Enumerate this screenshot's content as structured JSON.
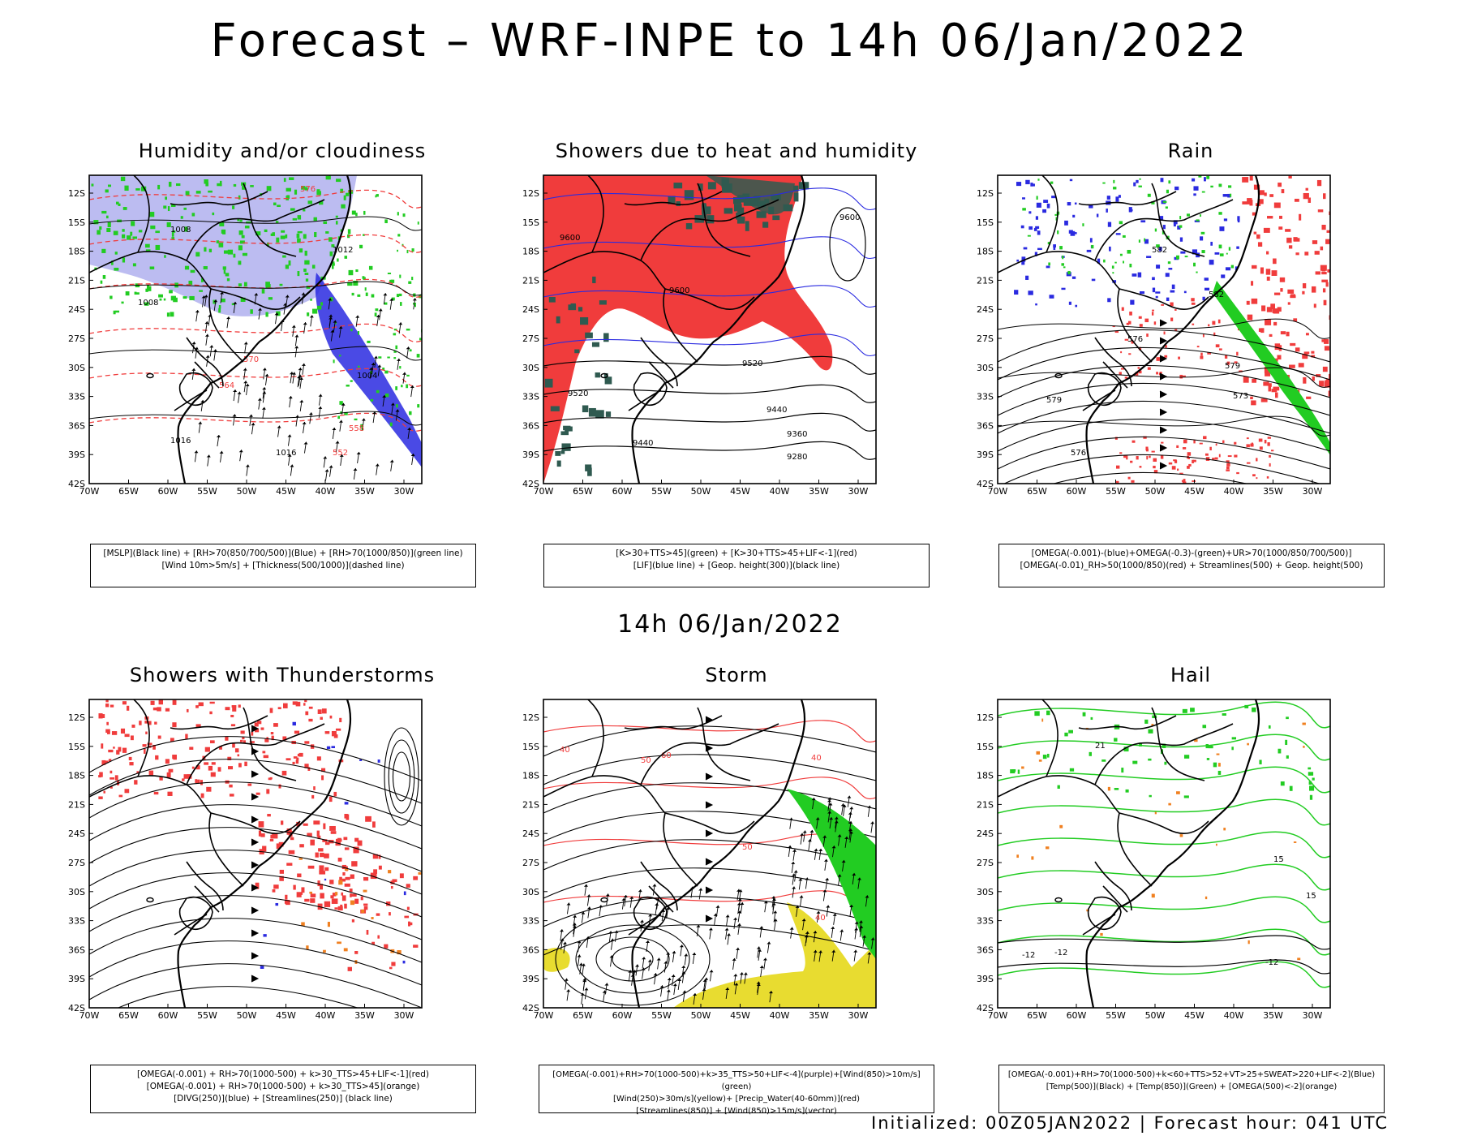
{
  "header": {
    "title": "Forecast – WRF-INPE to 14h 06/Jan/2022"
  },
  "subtitle": "14h 06/Jan/2022",
  "footer": "Initialized: 00Z05JAN2022 | Forecast hour: 041 UTC",
  "axes": {
    "lat_labels": [
      "12S",
      "15S",
      "18S",
      "21S",
      "24S",
      "27S",
      "30S",
      "33S",
      "36S",
      "39S",
      "42S"
    ],
    "lon_labels": [
      "70W",
      "65W",
      "60W",
      "55W",
      "50W",
      "45W",
      "40W",
      "35W",
      "30W"
    ]
  },
  "colors": {
    "red": "#f03c3c",
    "green": "#22cc22",
    "blue": "#2a2ae0",
    "lightblue": "#b0b0ee",
    "yellow": "#e8dc30",
    "orange": "#f08020",
    "darkgreen": "#2f5a50"
  },
  "panels": [
    {
      "title": "Humidity and/or cloudiness",
      "legend": [
        "[MSLP](Black line) + [RH>70(850/700/500)](Blue) + [RH>70(1000/850)](green line)",
        "[Wind 10m>5m/s] + [Thickness(500/1000)](dashed line)"
      ],
      "contour_labels": [
        "1008",
        "1012",
        "1016",
        "1004",
        "576",
        "570",
        "564",
        "558",
        "552"
      ]
    },
    {
      "title": "Showers due to heat and humidity",
      "legend": [
        "[K>30+TTS>45](green) + [K>30+TTS>45+LIF<-1](red)",
        "[LIF](blue line) + [Geop. height(300)](black line)"
      ],
      "contour_labels": [
        "9600",
        "9520",
        "9440",
        "9360",
        "9280"
      ]
    },
    {
      "title": "Rain",
      "legend": [
        "[OMEGA(-0.001)-(blue)+OMEGA(-0.3)-(green)+UR>70(1000/850/700/500)]",
        "[OMEGA(-0.01)_RH>50(1000/850)(red) + Streamlines(500) + Geop. height(500)"
      ],
      "contour_labels": [
        "582",
        "579",
        "576",
        "573"
      ]
    },
    {
      "title": "Showers with Thunderstorms",
      "legend": [
        "[OMEGA(-0.001) + RH>70(1000-500) + k>30_TTS>45+LIF<-1](red)",
        "[OMEGA(-0.001) + RH>70(1000-500) + k>30_TTS>45](orange)",
        "[DIVG(250)](blue) + [Streamlines(250)] (black line)"
      ],
      "contour_labels": []
    },
    {
      "title": "Storm",
      "legend": [
        "[OMEGA(-0.001)+RH>70(1000-500)+k>35_TTS>50+LIF<-4](purple)+[Wind(850)>10m/s](green)",
        "[Wind(250)>30m/s](yellow)+ [Precip_Water(40-60mm)](red)",
        "[Streamlines(850)] + [Wind(850)>15m/s](vector)"
      ],
      "contour_labels": [
        "40",
        "50",
        "60"
      ]
    },
    {
      "title": "Hail",
      "legend": [
        "[OMEGA(-0.001)+RH>70(1000-500)+k<60+TTS>52+VT>25+SWEAT>220+LIF<-2](Blue)",
        "[Temp(500)](Black) + [Temp(850)](Green) + [OMEGA(500)<-2](orange)"
      ],
      "contour_labels": [
        "-12",
        "15",
        "21"
      ]
    }
  ]
}
